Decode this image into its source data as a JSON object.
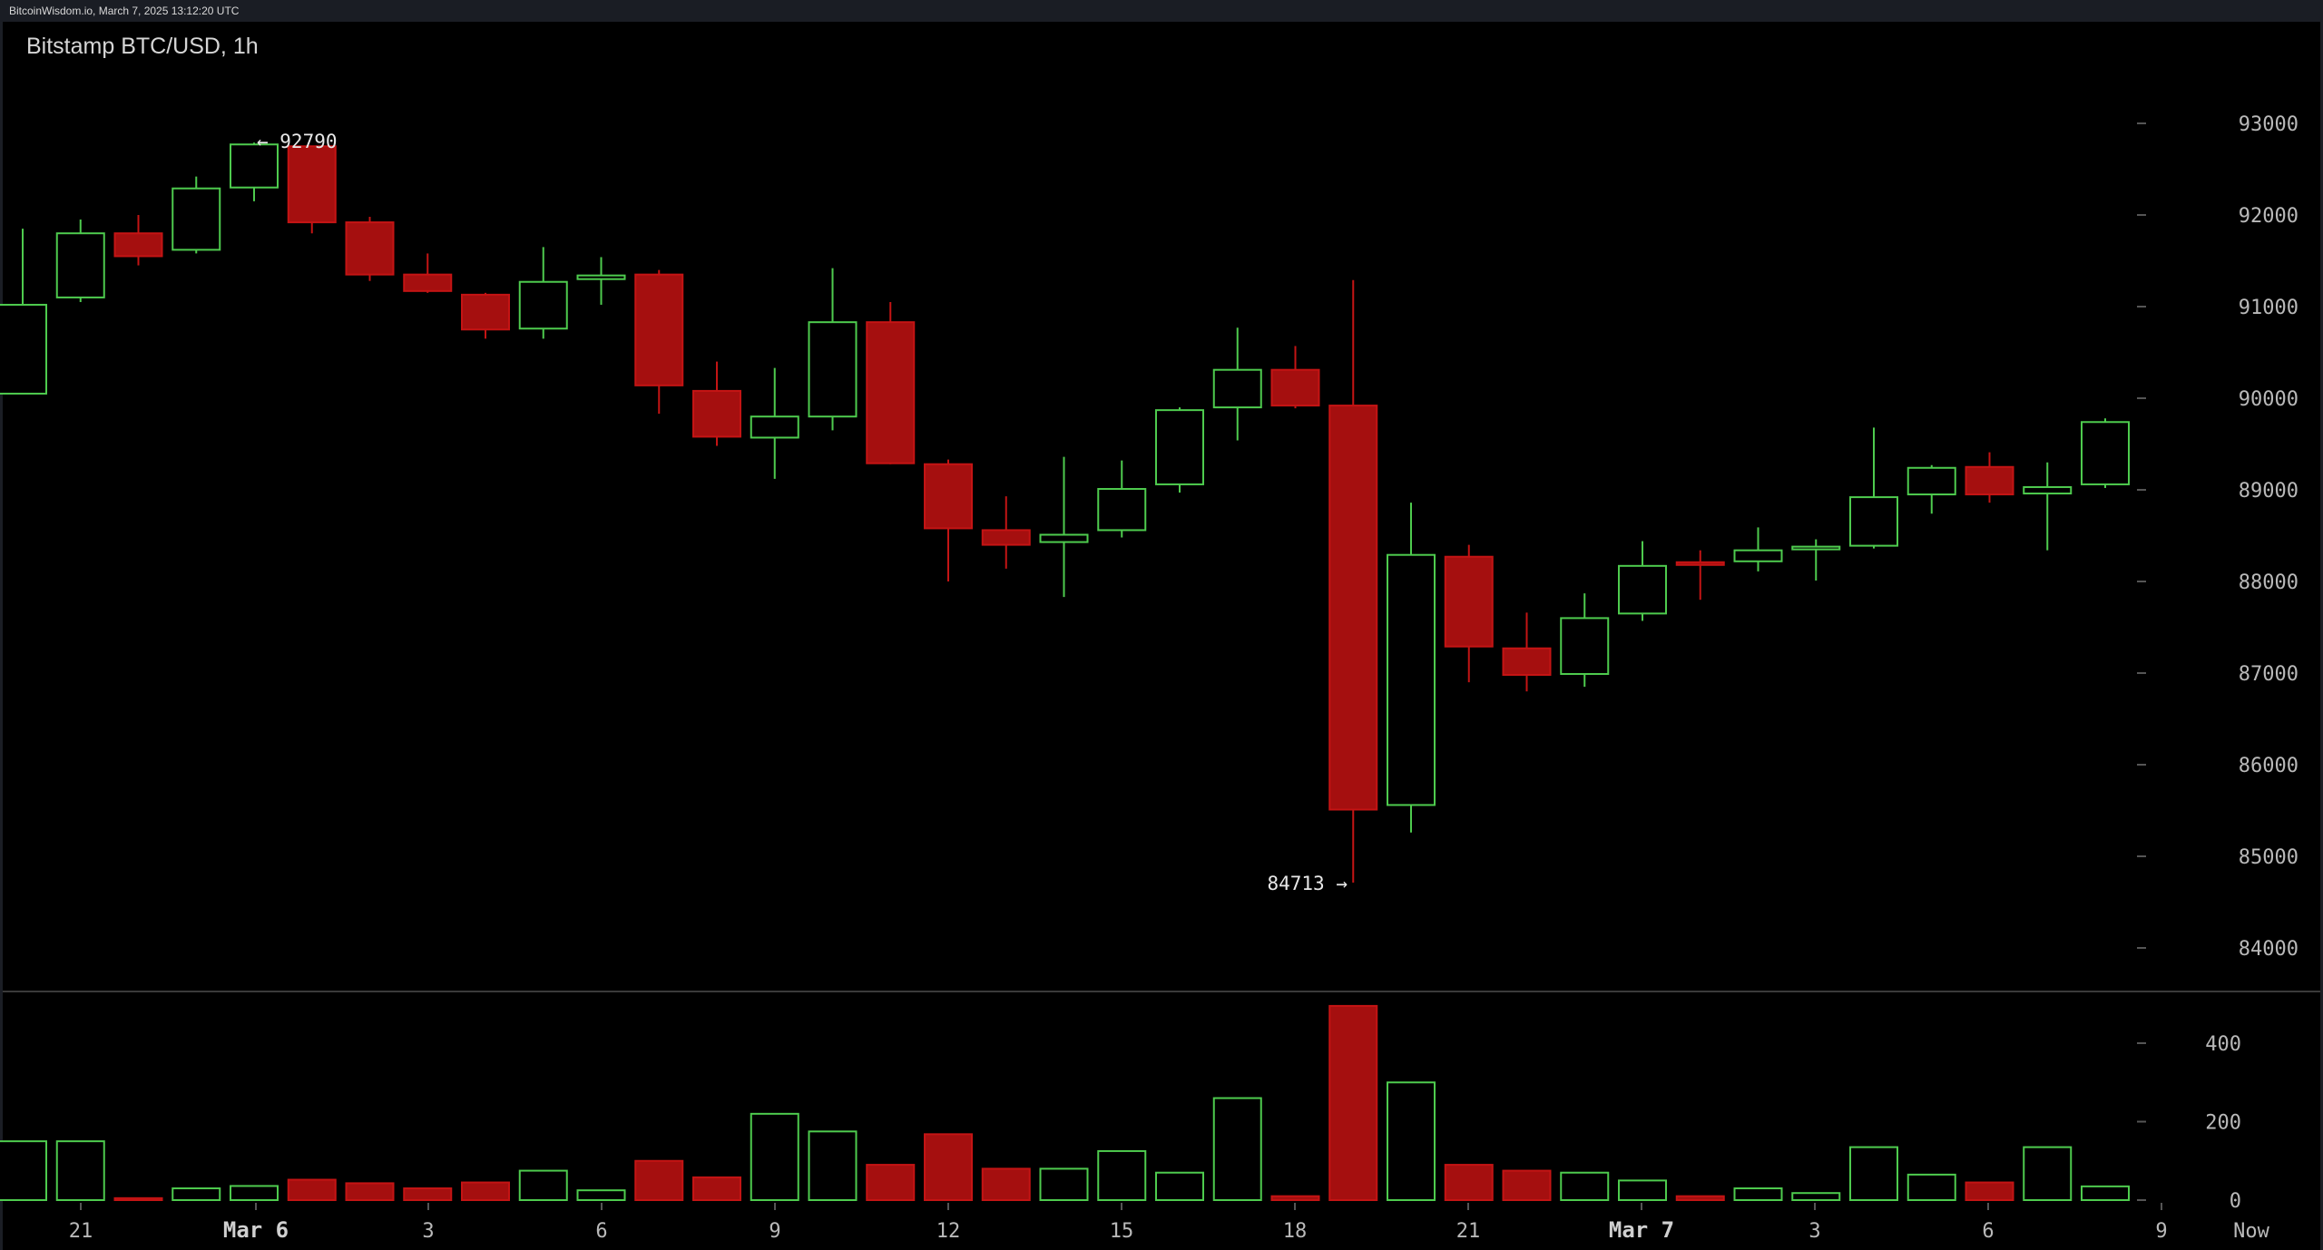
{
  "header": {
    "caption": "BitcoinWisdom.io, March 7, 2025 13:12:20 UTC",
    "title": "Bitstamp BTC/USD, 1h"
  },
  "colors": {
    "up": "#4ecb4e",
    "down": "#a50f0f",
    "down_edge": "#c41414",
    "axis_text": "#b9b9b9",
    "tick": "#555555",
    "annotation": "#e8e8e8"
  },
  "chart_data": {
    "type": "candlestick",
    "timeframe": "1h",
    "price_axis": {
      "ticks": [
        84000,
        85000,
        86000,
        87000,
        88000,
        89000,
        90000,
        91000,
        92000,
        93000
      ]
    },
    "volume_axis": {
      "ticks": [
        0,
        200,
        400
      ]
    },
    "x_tick_labels": [
      "21",
      "Mar 6",
      "3",
      "6",
      "9",
      "12",
      "15",
      "18",
      "21",
      "Mar 7",
      "3",
      "6",
      "9",
      "Now"
    ],
    "annotations": {
      "high": {
        "label": "← 92790",
        "value": 92790
      },
      "low": {
        "label": "84713 →",
        "value": 84713
      }
    },
    "candles": [
      {
        "o": 90050,
        "h": 91850,
        "l": 90050,
        "c": 91020,
        "v": 150
      },
      {
        "o": 91100,
        "h": 91950,
        "l": 91050,
        "c": 91800,
        "v": 150
      },
      {
        "o": 91800,
        "h": 92000,
        "l": 91450,
        "c": 91550,
        "v": 5
      },
      {
        "o": 91620,
        "h": 92420,
        "l": 91580,
        "c": 92290,
        "v": 30
      },
      {
        "o": 92300,
        "h": 92790,
        "l": 92150,
        "c": 92770,
        "v": 36
      },
      {
        "o": 92750,
        "h": 92750,
        "l": 91800,
        "c": 91920,
        "v": 52
      },
      {
        "o": 91920,
        "h": 91980,
        "l": 91280,
        "c": 91350,
        "v": 43
      },
      {
        "o": 91350,
        "h": 91580,
        "l": 91150,
        "c": 91170,
        "v": 30
      },
      {
        "o": 91130,
        "h": 91150,
        "l": 90650,
        "c": 90750,
        "v": 45
      },
      {
        "o": 90760,
        "h": 91650,
        "l": 90650,
        "c": 91270,
        "v": 75
      },
      {
        "o": 91300,
        "h": 91540,
        "l": 91020,
        "c": 91340,
        "v": 25
      },
      {
        "o": 91350,
        "h": 91400,
        "l": 89830,
        "c": 90140,
        "v": 100
      },
      {
        "o": 90080,
        "h": 90400,
        "l": 89480,
        "c": 89580,
        "v": 58
      },
      {
        "o": 89570,
        "h": 90330,
        "l": 89120,
        "c": 89800,
        "v": 220
      },
      {
        "o": 89800,
        "h": 91420,
        "l": 89650,
        "c": 90830,
        "v": 175
      },
      {
        "o": 90830,
        "h": 91050,
        "l": 89280,
        "c": 89290,
        "v": 90
      },
      {
        "o": 89280,
        "h": 89330,
        "l": 88000,
        "c": 88580,
        "v": 168
      },
      {
        "o": 88560,
        "h": 88930,
        "l": 88140,
        "c": 88400,
        "v": 80
      },
      {
        "o": 88430,
        "h": 89360,
        "l": 87830,
        "c": 88510,
        "v": 80
      },
      {
        "o": 88560,
        "h": 89320,
        "l": 88480,
        "c": 89010,
        "v": 125
      },
      {
        "o": 89060,
        "h": 89900,
        "l": 88970,
        "c": 89870,
        "v": 70
      },
      {
        "o": 89900,
        "h": 90770,
        "l": 89540,
        "c": 90310,
        "v": 260
      },
      {
        "o": 90310,
        "h": 90570,
        "l": 89890,
        "c": 89920,
        "v": 10
      },
      {
        "o": 89920,
        "h": 91290,
        "l": 84713,
        "c": 85510,
        "v": 495
      },
      {
        "o": 85560,
        "h": 88860,
        "l": 85260,
        "c": 88290,
        "v": 300
      },
      {
        "o": 88270,
        "h": 88400,
        "l": 86900,
        "c": 87290,
        "v": 90
      },
      {
        "o": 87270,
        "h": 87660,
        "l": 86800,
        "c": 86980,
        "v": 75
      },
      {
        "o": 86990,
        "h": 87870,
        "l": 86850,
        "c": 87600,
        "v": 70
      },
      {
        "o": 87650,
        "h": 88440,
        "l": 87570,
        "c": 88170,
        "v": 50
      },
      {
        "o": 88210,
        "h": 88340,
        "l": 87800,
        "c": 88190,
        "v": 10
      },
      {
        "o": 88220,
        "h": 88590,
        "l": 88110,
        "c": 88340,
        "v": 30
      },
      {
        "o": 88370,
        "h": 88460,
        "l": 88010,
        "c": 88380,
        "v": 18
      },
      {
        "o": 88390,
        "h": 89680,
        "l": 88360,
        "c": 88920,
        "v": 135
      },
      {
        "o": 88950,
        "h": 89270,
        "l": 88740,
        "c": 89240,
        "v": 65
      },
      {
        "o": 89250,
        "h": 89410,
        "l": 88860,
        "c": 88950,
        "v": 45
      },
      {
        "o": 88960,
        "h": 89300,
        "l": 88340,
        "c": 89030,
        "v": 135
      },
      {
        "o": 89060,
        "h": 89780,
        "l": 89020,
        "c": 89740,
        "v": 35
      }
    ]
  }
}
